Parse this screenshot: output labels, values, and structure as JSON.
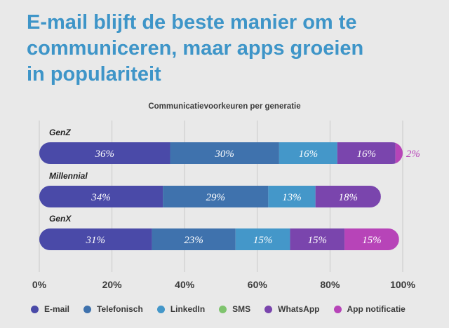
{
  "headline": {
    "line1": "E-mail blijft de beste manier om te",
    "line2": "communiceren, maar apps groeien",
    "line3": "in populariteit"
  },
  "chart_data": {
    "type": "bar",
    "orientation": "horizontal",
    "stacked": true,
    "title": "Communicatievoorkeuren per generatie",
    "categories": [
      "GenZ",
      "Millennial",
      "GenX"
    ],
    "series": [
      {
        "name": "E-mail",
        "color": "#4a4aa8",
        "values": [
          36,
          34,
          31
        ],
        "labels": [
          "36%",
          "34%",
          "31%"
        ]
      },
      {
        "name": "Telefonisch",
        "color": "#3f72ad",
        "values": [
          30,
          29,
          23
        ],
        "labels": [
          "30%",
          "29%",
          "23%"
        ]
      },
      {
        "name": "LinkedIn",
        "color": "#4497c9",
        "values": [
          16,
          13,
          15
        ],
        "labels": [
          "16%",
          "13%",
          "15%"
        ]
      },
      {
        "name": "SMS",
        "color": "#7fc46e",
        "values": [
          0,
          0,
          0
        ],
        "labels": [
          "",
          "",
          ""
        ]
      },
      {
        "name": "WhatsApp",
        "color": "#7a45ad",
        "values": [
          16,
          18,
          15
        ],
        "labels": [
          "16%",
          "18%",
          "15%"
        ]
      },
      {
        "name": "App notificatie",
        "color": "#b744b8",
        "values": [
          2,
          0,
          15
        ],
        "labels": [
          "2%",
          "",
          "15%"
        ]
      }
    ],
    "xlim": [
      0,
      100
    ],
    "xticks": [
      "0%",
      "20%",
      "40%",
      "60%",
      "80%",
      "100%"
    ],
    "grid": true,
    "legend_position": "bottom"
  }
}
